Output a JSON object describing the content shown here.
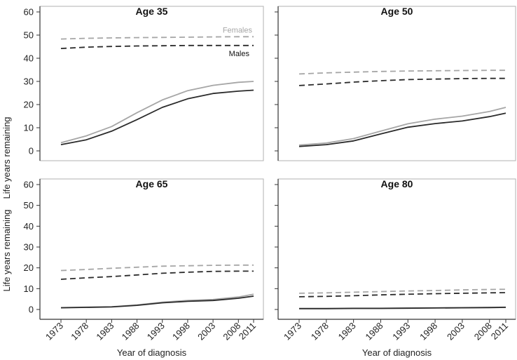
{
  "chart_data": {
    "type": "line",
    "ylabel": "Life years remaining",
    "xlabel": "Year of diagnosis",
    "ylim": [
      0,
      60
    ],
    "yticks": [
      "0",
      "10",
      "20",
      "30",
      "40",
      "50",
      "60"
    ],
    "xlim": [
      1973,
      2011
    ],
    "xticks": [
      "1973",
      "1978",
      "1983",
      "1988",
      "1993",
      "1998",
      "2003",
      "2008",
      "2011"
    ],
    "xtick_values": [
      1973,
      1978,
      1983,
      1988,
      1993,
      1998,
      2003,
      2008,
      2011
    ],
    "legend": {
      "females": "Females",
      "males": "Males"
    },
    "colors": {
      "females": "#a6a6a6",
      "males": "#2b2b2b"
    },
    "line_styles": {
      "expected": "dashed",
      "observed": "solid"
    },
    "x": [
      1973,
      1978,
      1983,
      1988,
      1993,
      1998,
      2003,
      2008,
      2011
    ],
    "panels": [
      {
        "title": "Age 35",
        "series": [
          {
            "name": "Females expected",
            "sex": "females",
            "style": "dashed",
            "values": [
              48.3,
              48.6,
              48.8,
              48.9,
              49.0,
              49.1,
              49.2,
              49.3,
              49.3
            ]
          },
          {
            "name": "Males expected",
            "sex": "males",
            "style": "dashed",
            "values": [
              44.2,
              44.8,
              45.1,
              45.3,
              45.4,
              45.5,
              45.5,
              45.5,
              45.5
            ]
          },
          {
            "name": "Females observed",
            "sex": "females",
            "style": "solid",
            "values": [
              3.5,
              6.5,
              10.5,
              16.5,
              22.0,
              26.0,
              28.3,
              29.6,
              30.0
            ]
          },
          {
            "name": "Males observed",
            "sex": "males",
            "style": "solid",
            "values": [
              2.7,
              4.8,
              8.5,
              13.5,
              18.8,
              22.5,
              24.8,
              25.8,
              26.2
            ]
          }
        ]
      },
      {
        "title": "Age 50",
        "series": [
          {
            "name": "Females expected",
            "sex": "females",
            "style": "dashed",
            "values": [
              33.2,
              33.7,
              34.0,
              34.3,
              34.5,
              34.6,
              34.7,
              34.8,
              34.8
            ]
          },
          {
            "name": "Males expected",
            "sex": "males",
            "style": "dashed",
            "values": [
              28.2,
              28.9,
              29.7,
              30.3,
              30.8,
              31.0,
              31.2,
              31.3,
              31.3
            ]
          },
          {
            "name": "Females observed",
            "sex": "females",
            "style": "solid",
            "values": [
              2.5,
              3.4,
              5.3,
              8.5,
              11.7,
              13.7,
              15.0,
              17.0,
              18.8
            ]
          },
          {
            "name": "Males observed",
            "sex": "males",
            "style": "solid",
            "values": [
              1.9,
              2.7,
              4.3,
              7.3,
              10.2,
              11.8,
              12.9,
              14.8,
              16.3
            ]
          }
        ]
      },
      {
        "title": "Age 65",
        "series": [
          {
            "name": "Females expected",
            "sex": "females",
            "style": "dashed",
            "values": [
              18.7,
              19.2,
              19.8,
              20.3,
              20.8,
              21.0,
              21.2,
              21.3,
              21.3
            ]
          },
          {
            "name": "Males expected",
            "sex": "males",
            "style": "dashed",
            "values": [
              14.5,
              15.2,
              15.8,
              16.6,
              17.4,
              17.9,
              18.3,
              18.4,
              18.4
            ]
          },
          {
            "name": "Females observed",
            "sex": "females",
            "style": "solid",
            "values": [
              0.9,
              1.1,
              1.3,
              2.2,
              3.5,
              4.3,
              4.8,
              6.0,
              7.3
            ]
          },
          {
            "name": "Males observed",
            "sex": "males",
            "style": "solid",
            "values": [
              0.8,
              1.0,
              1.2,
              2.0,
              3.2,
              3.9,
              4.3,
              5.4,
              6.4
            ]
          }
        ]
      },
      {
        "title": "Age 80",
        "series": [
          {
            "name": "Females expected",
            "sex": "females",
            "style": "dashed",
            "values": [
              7.8,
              8.0,
              8.3,
              8.6,
              8.9,
              9.1,
              9.4,
              9.6,
              9.7
            ]
          },
          {
            "name": "Males expected",
            "sex": "males",
            "style": "dashed",
            "values": [
              6.1,
              6.3,
              6.6,
              7.0,
              7.3,
              7.6,
              7.8,
              8.0,
              8.1
            ]
          },
          {
            "name": "Females observed",
            "sex": "females",
            "style": "solid",
            "values": [
              0.5,
              0.5,
              0.6,
              0.6,
              0.7,
              0.8,
              0.9,
              1.0,
              1.1
            ]
          },
          {
            "name": "Males observed",
            "sex": "males",
            "style": "solid",
            "values": [
              0.4,
              0.4,
              0.5,
              0.5,
              0.6,
              0.7,
              0.8,
              0.9,
              1.0
            ]
          }
        ]
      }
    ]
  }
}
